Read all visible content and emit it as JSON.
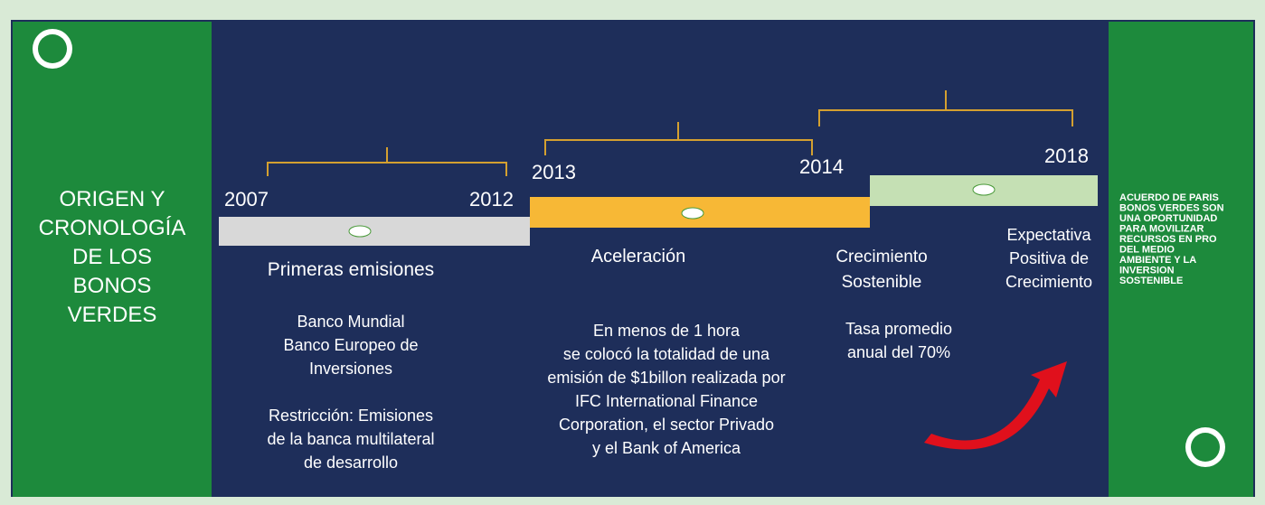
{
  "left_panel": {
    "title": [
      "ORIGEN Y",
      "CRONOLOGÍA",
      "DE LOS",
      "BONOS",
      "VERDES"
    ]
  },
  "periods": [
    {
      "start": "2007",
      "end": "2012",
      "label": "Primeras emisiones",
      "notes": [
        "Banco Mundial",
        "Banco Europeo de",
        "Inversiones",
        "",
        "Restricción: Emisiones",
        "de la banca multilateral",
        "de desarrollo"
      ]
    },
    {
      "start": "2013",
      "end": "",
      "label": "Aceleración",
      "notes": [
        "En menos de 1 hora",
        "se colocó la totalidad de una",
        "emisión de $1billon realizada por",
        "IFC International Finance",
        "Corporation, el sector Privado",
        "y el Bank of America"
      ]
    },
    {
      "start": "2014",
      "end": "2018",
      "label": "Crecimiento Sostenible",
      "notes": [
        "Tasa promedio",
        "anual del 70%"
      ],
      "extra_label": [
        "Expectativa",
        "Positiva de",
        "Crecimiento"
      ]
    }
  ],
  "right_panel": {
    "text": [
      "ACUERDO DE PARIS",
      "BONOS VERDES SON",
      "UNA OPORTUNIDAD",
      "PARA MOVILIZAR",
      "RECURSOS EN PRO",
      "DEL MEDIO",
      "AMBIENTE Y LA",
      "INVERSION",
      "SOSTENIBLE"
    ]
  }
}
